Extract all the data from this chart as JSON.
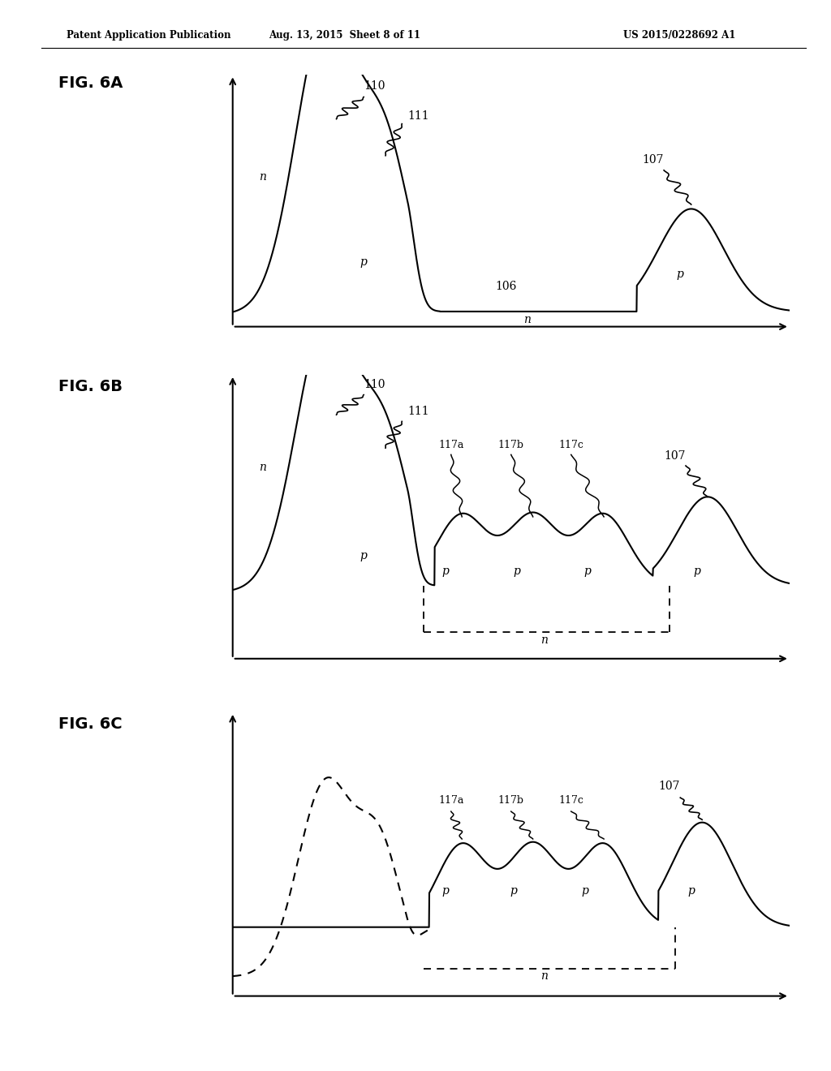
{
  "header_left": "Patent Application Publication",
  "header_center": "Aug. 13, 2015  Sheet 8 of 11",
  "header_right": "US 2015/0228692 A1",
  "background": "#ffffff",
  "line_color": "#000000"
}
